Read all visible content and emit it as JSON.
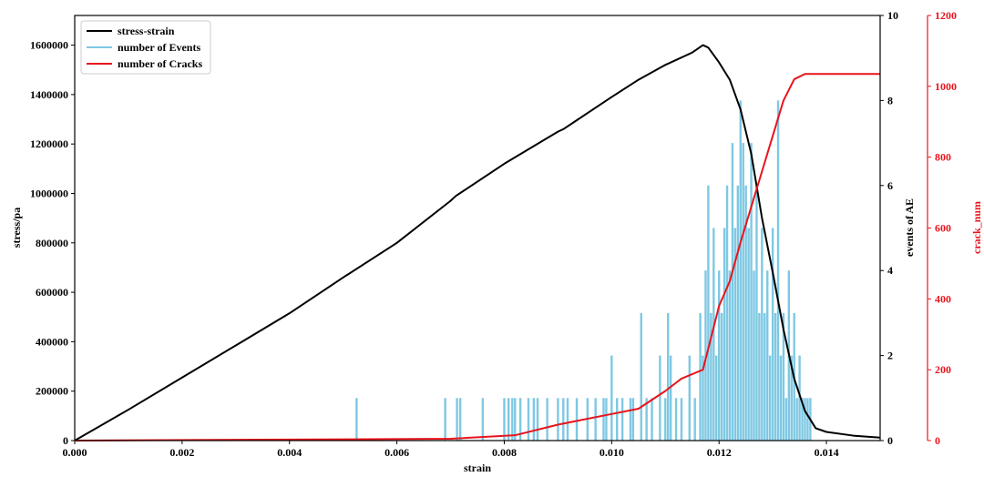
{
  "chart_data": {
    "type": "line",
    "x_axis": {
      "label": "strain",
      "lim": [
        0,
        0.015
      ],
      "ticks": [
        0,
        0.002,
        0.004,
        0.006,
        0.008,
        0.01,
        0.012,
        0.014
      ],
      "tick_labels": [
        "0.000",
        "0.002",
        "0.004",
        "0.006",
        "0.008",
        "0.010",
        "0.012",
        "0.014"
      ]
    },
    "y_axis_left": {
      "label": "stress/pa",
      "lim": [
        0,
        1720000
      ],
      "ticks": [
        0,
        200000,
        400000,
        600000,
        800000,
        1000000,
        1200000,
        1400000,
        1600000
      ],
      "tick_labels": [
        "0",
        "200000",
        "400000",
        "600000",
        "800000",
        "1000000",
        "1200000",
        "1400000",
        "1600000"
      ],
      "color": "#000000"
    },
    "y_axis_right1": {
      "label": "events of AE",
      "lim": [
        0,
        10
      ],
      "ticks": [
        0,
        2,
        4,
        6,
        8,
        10
      ],
      "tick_labels": [
        "0",
        "2",
        "4",
        "6",
        "8",
        "10"
      ],
      "color": "#000000"
    },
    "y_axis_right2": {
      "label": "crack_num",
      "lim": [
        0,
        1200
      ],
      "ticks": [
        0,
        200,
        400,
        600,
        800,
        1000,
        1200
      ],
      "tick_labels": [
        "0",
        "200",
        "400",
        "600",
        "800",
        "1000",
        "1200"
      ],
      "color": "#e8141c"
    },
    "legend": {
      "placement": "top-left",
      "entries": [
        "stress-strain",
        "number of Events",
        "number of Cracks"
      ]
    },
    "series": [
      {
        "name": "stress-strain",
        "axis": "left",
        "color": "#000000",
        "x": [
          0,
          0.001,
          0.002,
          0.003,
          0.004,
          0.005,
          0.006,
          0.007,
          0.0071,
          0.008,
          0.009,
          0.0091,
          0.01,
          0.0105,
          0.011,
          0.0115,
          0.0117,
          0.0118,
          0.012,
          0.0122,
          0.0124,
          0.0126,
          0.0128,
          0.013,
          0.0132,
          0.0134,
          0.0136,
          0.0138,
          0.014,
          0.0145,
          0.015
        ],
        "y": [
          0,
          125000,
          255000,
          385000,
          515000,
          660000,
          800000,
          970000,
          990000,
          1120000,
          1250000,
          1260000,
          1390000,
          1460000,
          1520000,
          1570000,
          1600000,
          1590000,
          1530000,
          1460000,
          1340000,
          1160000,
          900000,
          680000,
          450000,
          250000,
          120000,
          50000,
          35000,
          20000,
          12000
        ]
      },
      {
        "name": "number of Cracks",
        "axis": "right2",
        "color": "#e8141c",
        "x": [
          0,
          0.007,
          0.0082,
          0.009,
          0.0095,
          0.01,
          0.0105,
          0.011,
          0.0113,
          0.0117,
          0.012,
          0.0122,
          0.0124,
          0.0126,
          0.0128,
          0.013,
          0.0132,
          0.0134,
          0.0136,
          0.014,
          0.015
        ],
        "y": [
          0,
          5,
          15,
          45,
          60,
          75,
          90,
          140,
          175,
          200,
          380,
          450,
          560,
          660,
          760,
          860,
          960,
          1020,
          1035,
          1035,
          1035
        ]
      },
      {
        "name": "number of Events",
        "axis": "right1",
        "type": "bar",
        "color": "#7ec8e3",
        "events": [
          [
            0.00525,
            1
          ],
          [
            0.0069,
            1
          ],
          [
            0.00712,
            1
          ],
          [
            0.00718,
            1
          ],
          [
            0.0076,
            1
          ],
          [
            0.008,
            1
          ],
          [
            0.00808,
            1
          ],
          [
            0.00815,
            1
          ],
          [
            0.0082,
            1
          ],
          [
            0.0083,
            1
          ],
          [
            0.00845,
            1
          ],
          [
            0.00855,
            1
          ],
          [
            0.00862,
            1
          ],
          [
            0.0088,
            1
          ],
          [
            0.009,
            1
          ],
          [
            0.0091,
            1
          ],
          [
            0.00918,
            1
          ],
          [
            0.00935,
            1
          ],
          [
            0.00955,
            1
          ],
          [
            0.0097,
            1
          ],
          [
            0.00985,
            1
          ],
          [
            0.0099,
            1
          ],
          [
            0.01,
            2
          ],
          [
            0.0101,
            1
          ],
          [
            0.0102,
            1
          ],
          [
            0.01035,
            1
          ],
          [
            0.0104,
            1
          ],
          [
            0.01055,
            3
          ],
          [
            0.01065,
            1
          ],
          [
            0.01075,
            1
          ],
          [
            0.0109,
            2
          ],
          [
            0.011,
            1
          ],
          [
            0.01105,
            3
          ],
          [
            0.0111,
            2
          ],
          [
            0.0112,
            1
          ],
          [
            0.0113,
            1
          ],
          [
            0.01145,
            2
          ],
          [
            0.01155,
            1
          ],
          [
            0.01165,
            3
          ],
          [
            0.0117,
            2
          ],
          [
            0.01175,
            4
          ],
          [
            0.0118,
            6
          ],
          [
            0.01185,
            3
          ],
          [
            0.0119,
            5
          ],
          [
            0.01195,
            2
          ],
          [
            0.012,
            4
          ],
          [
            0.01205,
            3
          ],
          [
            0.0121,
            5
          ],
          [
            0.01215,
            6
          ],
          [
            0.0122,
            4
          ],
          [
            0.01225,
            7
          ],
          [
            0.0123,
            5
          ],
          [
            0.01235,
            6
          ],
          [
            0.0124,
            8
          ],
          [
            0.01245,
            7
          ],
          [
            0.0125,
            6
          ],
          [
            0.01255,
            5
          ],
          [
            0.0126,
            7
          ],
          [
            0.01265,
            4
          ],
          [
            0.0127,
            6
          ],
          [
            0.01275,
            3
          ],
          [
            0.0128,
            5
          ],
          [
            0.01285,
            3
          ],
          [
            0.0129,
            4
          ],
          [
            0.01295,
            2
          ],
          [
            0.013,
            5
          ],
          [
            0.01305,
            3
          ],
          [
            0.0131,
            8
          ],
          [
            0.01315,
            2
          ],
          [
            0.0132,
            3
          ],
          [
            0.01325,
            1
          ],
          [
            0.0133,
            4
          ],
          [
            0.01335,
            2
          ],
          [
            0.0134,
            3
          ],
          [
            0.01345,
            1
          ],
          [
            0.0135,
            2
          ],
          [
            0.01355,
            1
          ],
          [
            0.0136,
            1
          ],
          [
            0.01365,
            1
          ],
          [
            0.0137,
            1
          ]
        ]
      }
    ]
  }
}
